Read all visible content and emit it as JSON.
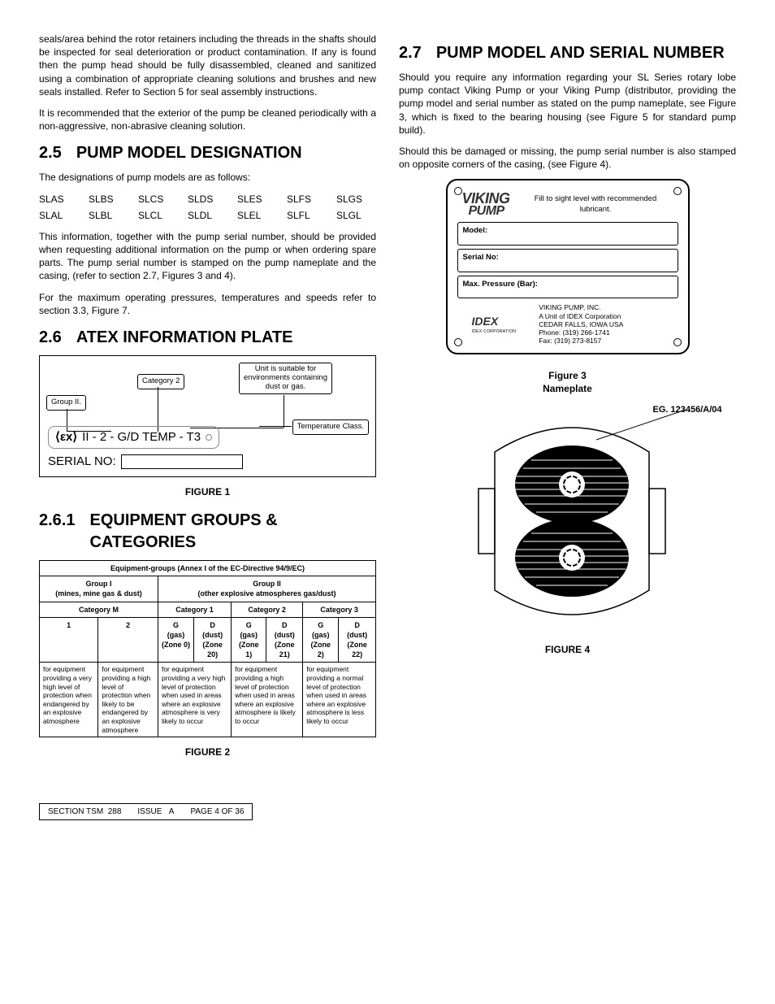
{
  "left": {
    "intro1": "seals/area behind the rotor retainers including the threads in the shafts should be inspected for seal deterioration or product contamination. If any is found then the pump head should be fully disassembled, cleaned and sanitized using a combination of appropriate cleaning solutions and brushes and new seals installed. Refer to Section 5 for seal assembly instructions.",
    "intro2": "It is recommended that the exterior of the pump be cleaned periodically with a non-aggressive, non-abrasive cleaning solution.",
    "s25": {
      "num": "2.5",
      "title": "PUMP MODEL DESIGNATION",
      "lead": "The designations of pump models are as follows:",
      "models": [
        "SLAS",
        "SLBS",
        "SLCS",
        "SLDS",
        "SLES",
        "SLFS",
        "SLGS",
        "SLAL",
        "SLBL",
        "SLCL",
        "SLDL",
        "SLEL",
        "SLFL",
        "SLGL"
      ],
      "p1": "This information, together with the pump serial number, should be provided when requesting additional information on the pump or when ordering spare parts. The pump serial number is stamped on the pump nameplate and the casing, (refer to section 2.7, Figures 3 and 4).",
      "p2": "For the maximum operating pressures, temperatures and speeds refer to section 3.3, Figure 7."
    },
    "s26": {
      "num": "2.6",
      "title": "ATEX INFORMATION PLATE"
    },
    "atex": {
      "group2": "Group II.",
      "category2": "Category 2",
      "suitable": "Unit is suitable for\nenvironments containing\ndust or gas.",
      "tempclass": "Temperature Class.",
      "code": "II - 2 - G/D  TEMP - T3",
      "serial": "SERIAL NO:"
    },
    "fig1": "FIGURE 1",
    "s261": {
      "num": "2.6.1",
      "title": "EQUIPMENT GROUPS & CATEGORIES"
    },
    "table": {
      "caption_top": "Equipment-groups (Annex I of the EC-Directive 94/9/EC)",
      "g1": "Group I\n(mines, mine gas & dust)",
      "g2": "Group II\n(other explosive atmospheres gas/dust)",
      "catM": "Category M",
      "cat1": "Category 1",
      "cat2": "Category 2",
      "cat3": "Category 3",
      "h": {
        "c1": "1",
        "c2": "2",
        "g0": "G\n(gas)\n(Zone 0)",
        "d20": "D\n(dust)\n(Zone 20)",
        "g1": "G\n(gas)\n(Zone 1)",
        "d21": "D\n(dust)\n(Zone 21)",
        "g2": "G\n(gas)\n(Zone 2)",
        "d22": "D\n(dust)\n(Zone 22)"
      },
      "d": {
        "c1": "for equipment providing a very high level of protection when endangered by an explosive atmosphere",
        "c2": "for equipment providing a high level of protection when likely to be endangered by an explosive atmosphere",
        "c3": "for equipment providing a very high level of protection when used in areas where an explosive atmosphere is very likely to occur",
        "c4": "for equipment providing a high level of protection when used in areas where an explosive  atmosphere is likely to occur",
        "c5": "for equipment providing a normal level of protection when used in areas where an explosive atmosphere is less likely to occur"
      }
    },
    "fig2": "FIGURE 2"
  },
  "right": {
    "s27": {
      "num": "2.7",
      "title": "PUMP MODEL AND SERIAL NUMBER",
      "p1": "Should you require any information regarding your SL Series rotary lobe pump contact Viking Pump or your Viking Pump (distributor, providing the pump model and serial number as stated on the pump nameplate, see Figure 3, which is fixed to the bearing housing (see Figure 5 for standard pump build).",
      "p2": "Should this be damaged or missing, the pump serial number is also stamped on opposite corners of the casing, (see Figure 4)."
    },
    "nameplate": {
      "logo1": "VIKING",
      "logo2": "PUMP",
      "fill": "Fill to sight level with recommended lubricant.",
      "model": "Model:",
      "serial": "Serial No:",
      "maxp": "Max. Pressure (Bar):",
      "idex": "IDEX",
      "idexsub": "IDEX CORPORATION",
      "addr": "VIKING PUMP, INC.\nA Unit of IDEX Corporation\nCEDAR FALLS, IOWA  USA\nPhone: (319) 266-1741\nFax: (319) 273-8157"
    },
    "fig3a": "Figure 3",
    "fig3b": "Nameplate",
    "eg": "EG. 123456/A/04",
    "fig4": "FIGURE 4"
  },
  "footer": {
    "sec_l": "SECTION TSM",
    "sec_v": "288",
    "iss_l": "ISSUE",
    "iss_v": "A",
    "page": "PAGE 4  OF  36"
  }
}
